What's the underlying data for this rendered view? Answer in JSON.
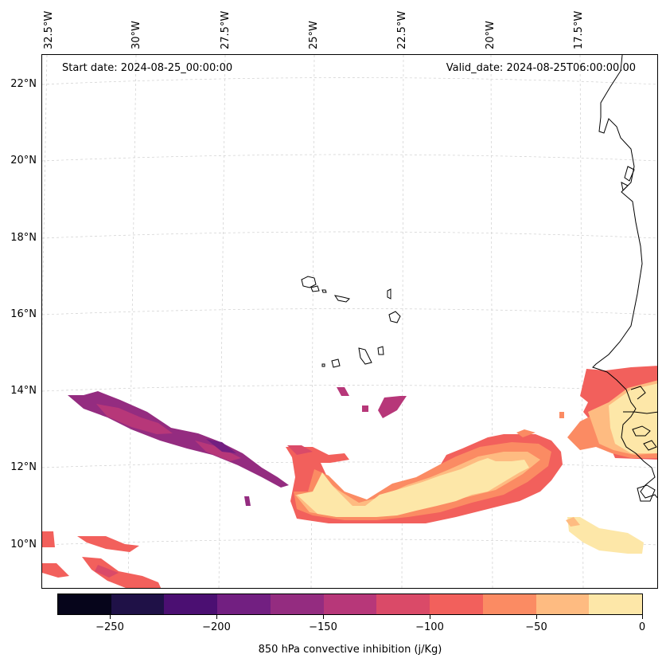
{
  "map": {
    "longitude_labels": [
      "32.5°W",
      "30°W",
      "27.5°W",
      "25°W",
      "22.5°W",
      "20°W",
      "17.5°W"
    ],
    "latitude_labels": [
      "22°N",
      "20°N",
      "18°N",
      "16°N",
      "14°N",
      "12°N",
      "10°N"
    ],
    "start_date": "Start date: 2024-08-25_00:00:00",
    "valid_date": "Valid_date: 2024-08-25T06:00:00.00",
    "colorbar": {
      "title": "850 hPa convective inhibition (j/Kg)",
      "tick_labels": [
        "−250",
        "−200",
        "−150",
        "−100",
        "−50",
        "0"
      ],
      "colors": [
        "#06051b",
        "#1f1147",
        "#4b0f72",
        "#721f81",
        "#942c80",
        "#b73779",
        "#da4a68",
        "#f2605c",
        "#fb8b63",
        "#febb81",
        "#fde7a8"
      ]
    }
  }
}
